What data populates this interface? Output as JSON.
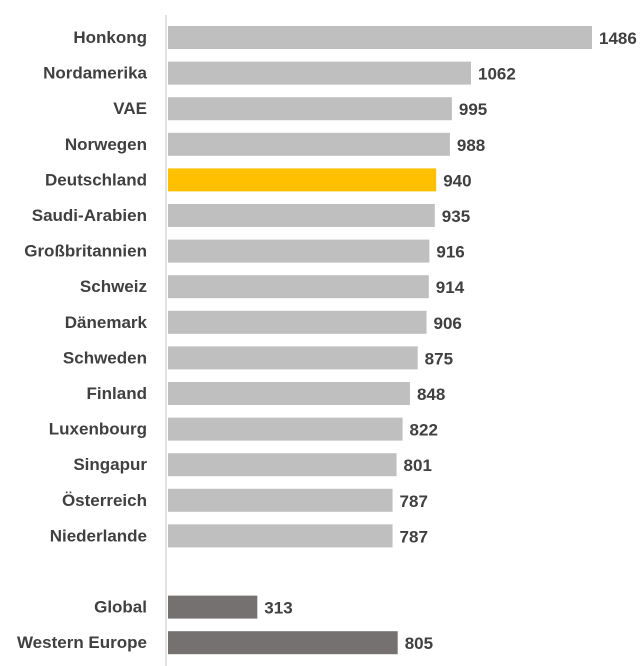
{
  "chart_data": {
    "type": "bar",
    "orientation": "horizontal",
    "categories": [
      "Honkong",
      "Nordamerika",
      "VAE",
      "Norwegen",
      "Deutschland",
      "Saudi-Arabien",
      "Großbritannien",
      "Schweiz",
      "Dänemark",
      "Schweden",
      "Finland",
      "Luxenbourg",
      "Singapur",
      "Österreich",
      "Niederlande",
      "Global",
      "Western Europe"
    ],
    "values": [
      1486,
      1062,
      995,
      988,
      940,
      935,
      916,
      914,
      906,
      875,
      848,
      822,
      801,
      787,
      787,
      313,
      805
    ],
    "value_labels": [
      "1486",
      "1062",
      "995",
      "988",
      "940",
      "935",
      "916",
      "914",
      "906",
      "875",
      "848",
      "822",
      "801",
      "787",
      "787",
      "313",
      "805"
    ],
    "groups": [
      "country",
      "country",
      "country",
      "country",
      "highlight",
      "country",
      "country",
      "country",
      "country",
      "country",
      "country",
      "country",
      "country",
      "country",
      "country",
      "aggregate",
      "aggregate"
    ],
    "colors": {
      "country": "#bfbfbf",
      "highlight": "#ffc000",
      "aggregate": "#767171",
      "axis": "#d9d9d9",
      "text": "#404040"
    },
    "gap_before_index": 15,
    "title": "",
    "xlabel": "",
    "ylabel": "",
    "xlim": [
      0,
      1500
    ],
    "grid": false,
    "legend": "none",
    "data_labels": "outside-end"
  }
}
